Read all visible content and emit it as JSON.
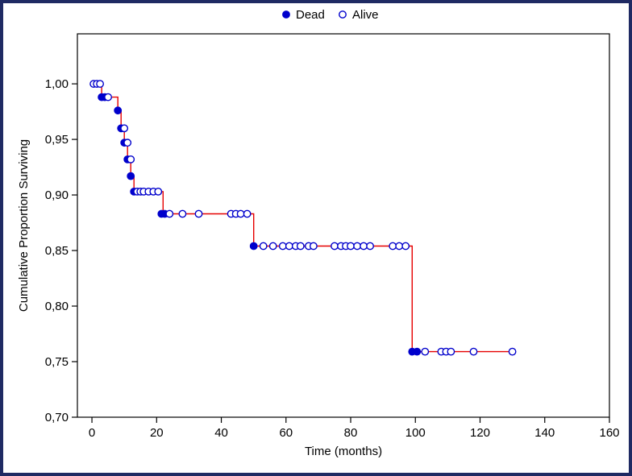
{
  "frame": {
    "border_color": "#1f2a63",
    "background": "#ffffff"
  },
  "legend": {
    "items": [
      {
        "label": "Dead",
        "marker": "filled-circle"
      },
      {
        "label": "Alive",
        "marker": "open-circle"
      }
    ]
  },
  "chart_data": {
    "type": "line",
    "subtype": "kaplan-meier-step",
    "title": "",
    "xlabel": "Time (months)",
    "ylabel": "Cumulative Proportion Surviving",
    "xlim": [
      -4.5,
      160
    ],
    "ylim": [
      0.7,
      1.045
    ],
    "xticks": [
      0,
      20,
      40,
      60,
      80,
      100,
      120,
      140,
      160
    ],
    "yticks": [
      0.7,
      0.75,
      0.8,
      0.85,
      0.9,
      0.95,
      1.0
    ],
    "ytick_labels": [
      "0,70",
      "0,75",
      "0,80",
      "0,85",
      "0,90",
      "0,95",
      "1,00"
    ],
    "grid": false,
    "legend_position": "top-center",
    "line_color": "#e60000",
    "marker_color": "#0000cc",
    "axis_color": "#000000",
    "curve_step_points": [
      [
        0,
        1.0
      ],
      [
        3,
        1.0
      ],
      [
        3,
        0.988
      ],
      [
        8,
        0.988
      ],
      [
        8,
        0.976
      ],
      [
        9,
        0.976
      ],
      [
        9,
        0.96
      ],
      [
        10,
        0.96
      ],
      [
        10,
        0.947
      ],
      [
        11,
        0.947
      ],
      [
        11,
        0.932
      ],
      [
        12,
        0.932
      ],
      [
        12,
        0.917
      ],
      [
        13,
        0.917
      ],
      [
        13,
        0.903
      ],
      [
        22,
        0.903
      ],
      [
        22,
        0.883
      ],
      [
        50,
        0.883
      ],
      [
        50,
        0.854
      ],
      [
        99,
        0.854
      ],
      [
        99,
        0.759
      ],
      [
        131,
        0.759
      ]
    ],
    "series": [
      {
        "name": "Dead",
        "marker": "filled",
        "points": [
          [
            3,
            0.988
          ],
          [
            4,
            0.988
          ],
          [
            8,
            0.976
          ],
          [
            9,
            0.96
          ],
          [
            10,
            0.947
          ],
          [
            11,
            0.932
          ],
          [
            12,
            0.917
          ],
          [
            13,
            0.903
          ],
          [
            21.5,
            0.883
          ],
          [
            22.5,
            0.883
          ],
          [
            50,
            0.854
          ],
          [
            99,
            0.759
          ],
          [
            100.5,
            0.759
          ]
        ]
      },
      {
        "name": "Alive",
        "marker": "open",
        "points": [
          [
            0.5,
            1.0
          ],
          [
            1.5,
            1.0
          ],
          [
            2.5,
            1.0
          ],
          [
            5,
            0.988
          ],
          [
            10,
            0.96
          ],
          [
            11,
            0.947
          ],
          [
            12,
            0.932
          ],
          [
            14,
            0.903
          ],
          [
            15,
            0.903
          ],
          [
            16,
            0.903
          ],
          [
            17.5,
            0.903
          ],
          [
            19,
            0.903
          ],
          [
            20.5,
            0.903
          ],
          [
            24,
            0.883
          ],
          [
            28,
            0.883
          ],
          [
            33,
            0.883
          ],
          [
            43,
            0.883
          ],
          [
            44.5,
            0.883
          ],
          [
            46,
            0.883
          ],
          [
            48,
            0.883
          ],
          [
            53,
            0.854
          ],
          [
            56,
            0.854
          ],
          [
            59,
            0.854
          ],
          [
            61,
            0.854
          ],
          [
            63,
            0.854
          ],
          [
            64.5,
            0.854
          ],
          [
            67,
            0.854
          ],
          [
            68.5,
            0.854
          ],
          [
            75,
            0.854
          ],
          [
            77,
            0.854
          ],
          [
            78.5,
            0.854
          ],
          [
            80,
            0.854
          ],
          [
            82,
            0.854
          ],
          [
            84,
            0.854
          ],
          [
            86,
            0.854
          ],
          [
            93,
            0.854
          ],
          [
            95,
            0.854
          ],
          [
            97,
            0.854
          ],
          [
            103,
            0.759
          ],
          [
            108,
            0.759
          ],
          [
            109.5,
            0.759
          ],
          [
            111,
            0.759
          ],
          [
            118,
            0.759
          ],
          [
            130,
            0.759
          ]
        ]
      }
    ]
  }
}
